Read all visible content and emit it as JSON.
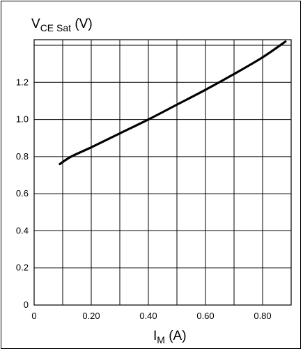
{
  "chart_data": {
    "type": "line",
    "title": "",
    "ylabel": {
      "main": "V",
      "subscript": "CE Sat",
      "unit": " (V)"
    },
    "xlabel": {
      "main": "I",
      "subscript": "M",
      "unit": " (A)"
    },
    "xlim": [
      0,
      0.9
    ],
    "ylim": [
      0,
      1.43
    ],
    "x_ticks": [
      {
        "value": 0,
        "label": "0"
      },
      {
        "value": 0.2,
        "label": "0.20"
      },
      {
        "value": 0.4,
        "label": "0.40"
      },
      {
        "value": 0.6,
        "label": "0.60"
      },
      {
        "value": 0.8,
        "label": "0.80"
      }
    ],
    "y_ticks": [
      {
        "value": 0,
        "label": "0"
      },
      {
        "value": 0.2,
        "label": "0.2"
      },
      {
        "value": 0.4,
        "label": "0.4"
      },
      {
        "value": 0.6,
        "label": "0.6"
      },
      {
        "value": 0.8,
        "label": "0.8"
      },
      {
        "value": 1.0,
        "label": "1.0"
      },
      {
        "value": 1.2,
        "label": "1.2"
      }
    ],
    "x_grid_step": 0.1,
    "y_grid_step": 0.2,
    "grid": true,
    "series": [
      {
        "color": "#000000",
        "x": [
          0.09,
          0.13,
          0.2,
          0.3,
          0.4,
          0.5,
          0.6,
          0.7,
          0.8,
          0.88
        ],
        "y": [
          0.76,
          0.8,
          0.85,
          0.925,
          1.0,
          1.08,
          1.16,
          1.245,
          1.335,
          1.42
        ]
      }
    ]
  }
}
